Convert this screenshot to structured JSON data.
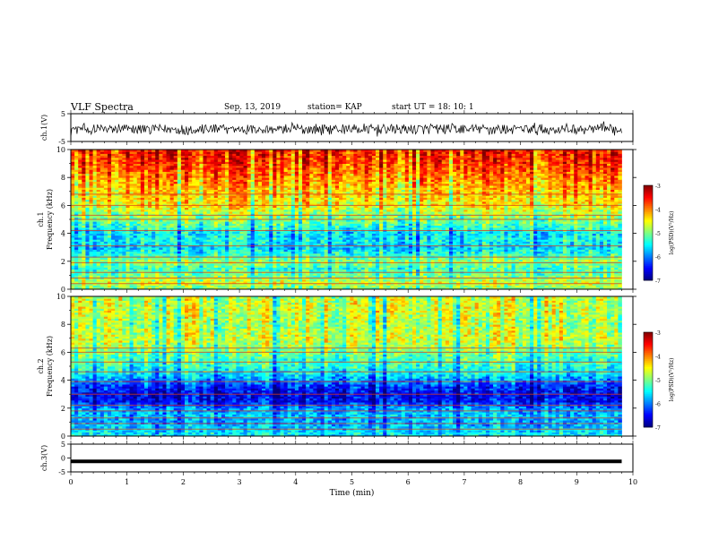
{
  "header": {
    "title": "VLF Spectra",
    "date": "Sep. 13, 2019",
    "station": "station= KAP",
    "start": "start  UT  =   18: 10: 1"
  },
  "chart_data": [
    {
      "type": "line",
      "panel": "ch1-waveform",
      "ylabel": "ch.1(V)",
      "ylim": [
        -5,
        5
      ],
      "y_ticks": [
        "5",
        "-5"
      ],
      "xlim": [
        0,
        10
      ],
      "signal": "noisy waveform, roughly between -3 and 2 V"
    },
    {
      "type": "heatmap",
      "panel": "ch1-spectrogram",
      "ylabel": "ch.1\nFrequency (kHz)",
      "ylim": [
        0,
        10
      ],
      "y_ticks": [
        "0",
        "2",
        "4",
        "6",
        "8",
        "10"
      ],
      "xlim": [
        0,
        10
      ],
      "data_end_min": 9.8,
      "colorbar": {
        "label": "log(PSD)(V²/Hz)",
        "range": [
          -7,
          -3
        ],
        "ticks": [
          "-3",
          "-4",
          "-5",
          "-6",
          "-7"
        ]
      },
      "profile_khz_logpsd": [
        [
          0,
          -5.0
        ],
        [
          0.5,
          -4.6
        ],
        [
          1,
          -5.0
        ],
        [
          1.5,
          -5.2
        ],
        [
          2,
          -4.8
        ],
        [
          2.5,
          -5.3
        ],
        [
          3,
          -5.6
        ],
        [
          3.5,
          -5.4
        ],
        [
          4,
          -5.5
        ],
        [
          4.5,
          -5.2
        ],
        [
          5,
          -4.9
        ],
        [
          5.5,
          -4.7
        ],
        [
          6,
          -4.4
        ],
        [
          7,
          -4.2
        ],
        [
          8,
          -3.9
        ],
        [
          9,
          -3.6
        ],
        [
          10,
          -3.4
        ]
      ],
      "lines_khz": [
        0.4,
        0.8,
        1.2,
        1.9,
        2.3,
        3.1,
        4.2,
        5.0,
        5.3,
        6.0,
        6.8
      ]
    },
    {
      "type": "heatmap",
      "panel": "ch2-spectrogram",
      "ylabel": "ch.2\nFrequency (kHz)",
      "ylim": [
        0,
        10
      ],
      "y_ticks": [
        "0",
        "2",
        "4",
        "6",
        "8",
        "10"
      ],
      "xlim": [
        0,
        10
      ],
      "data_end_min": 9.8,
      "colorbar": {
        "label": "log(PSD)(V²/Hz)",
        "range": [
          -7,
          -3
        ],
        "ticks": [
          "-3",
          "-4",
          "-5",
          "-6",
          "-7"
        ]
      },
      "profile_khz_logpsd": [
        [
          0,
          -5.5
        ],
        [
          0.5,
          -5.6
        ],
        [
          1,
          -5.8
        ],
        [
          1.5,
          -5.7
        ],
        [
          2,
          -5.9
        ],
        [
          2.5,
          -6.4
        ],
        [
          3,
          -6.5
        ],
        [
          3.5,
          -6.3
        ],
        [
          4,
          -5.9
        ],
        [
          4.5,
          -5.5
        ],
        [
          5,
          -5.3
        ],
        [
          6,
          -5.0
        ],
        [
          7,
          -4.6
        ],
        [
          8,
          -4.8
        ],
        [
          9,
          -4.6
        ],
        [
          10,
          -4.7
        ]
      ],
      "lines_khz": [
        0.5,
        0.9,
        1.3,
        1.8,
        2.2,
        3.0,
        3.9,
        4.6,
        5.3,
        6.0,
        6.3
      ]
    },
    {
      "type": "line",
      "panel": "ch3-waveform",
      "ylabel": "ch.3(V)",
      "ylim": [
        -5,
        5
      ],
      "y_ticks": [
        "5",
        "0",
        "-5"
      ],
      "xlim": [
        0,
        10
      ],
      "xlabel": "Time (min)",
      "x_ticks": [
        "0",
        "1",
        "2",
        "3",
        "4",
        "5",
        "6",
        "7",
        "8",
        "9",
        "10"
      ],
      "signal": "flat trace near -1.2 V"
    }
  ],
  "colors": {
    "axes": "#000000",
    "background": "#ffffff",
    "waveform": "#000000"
  }
}
